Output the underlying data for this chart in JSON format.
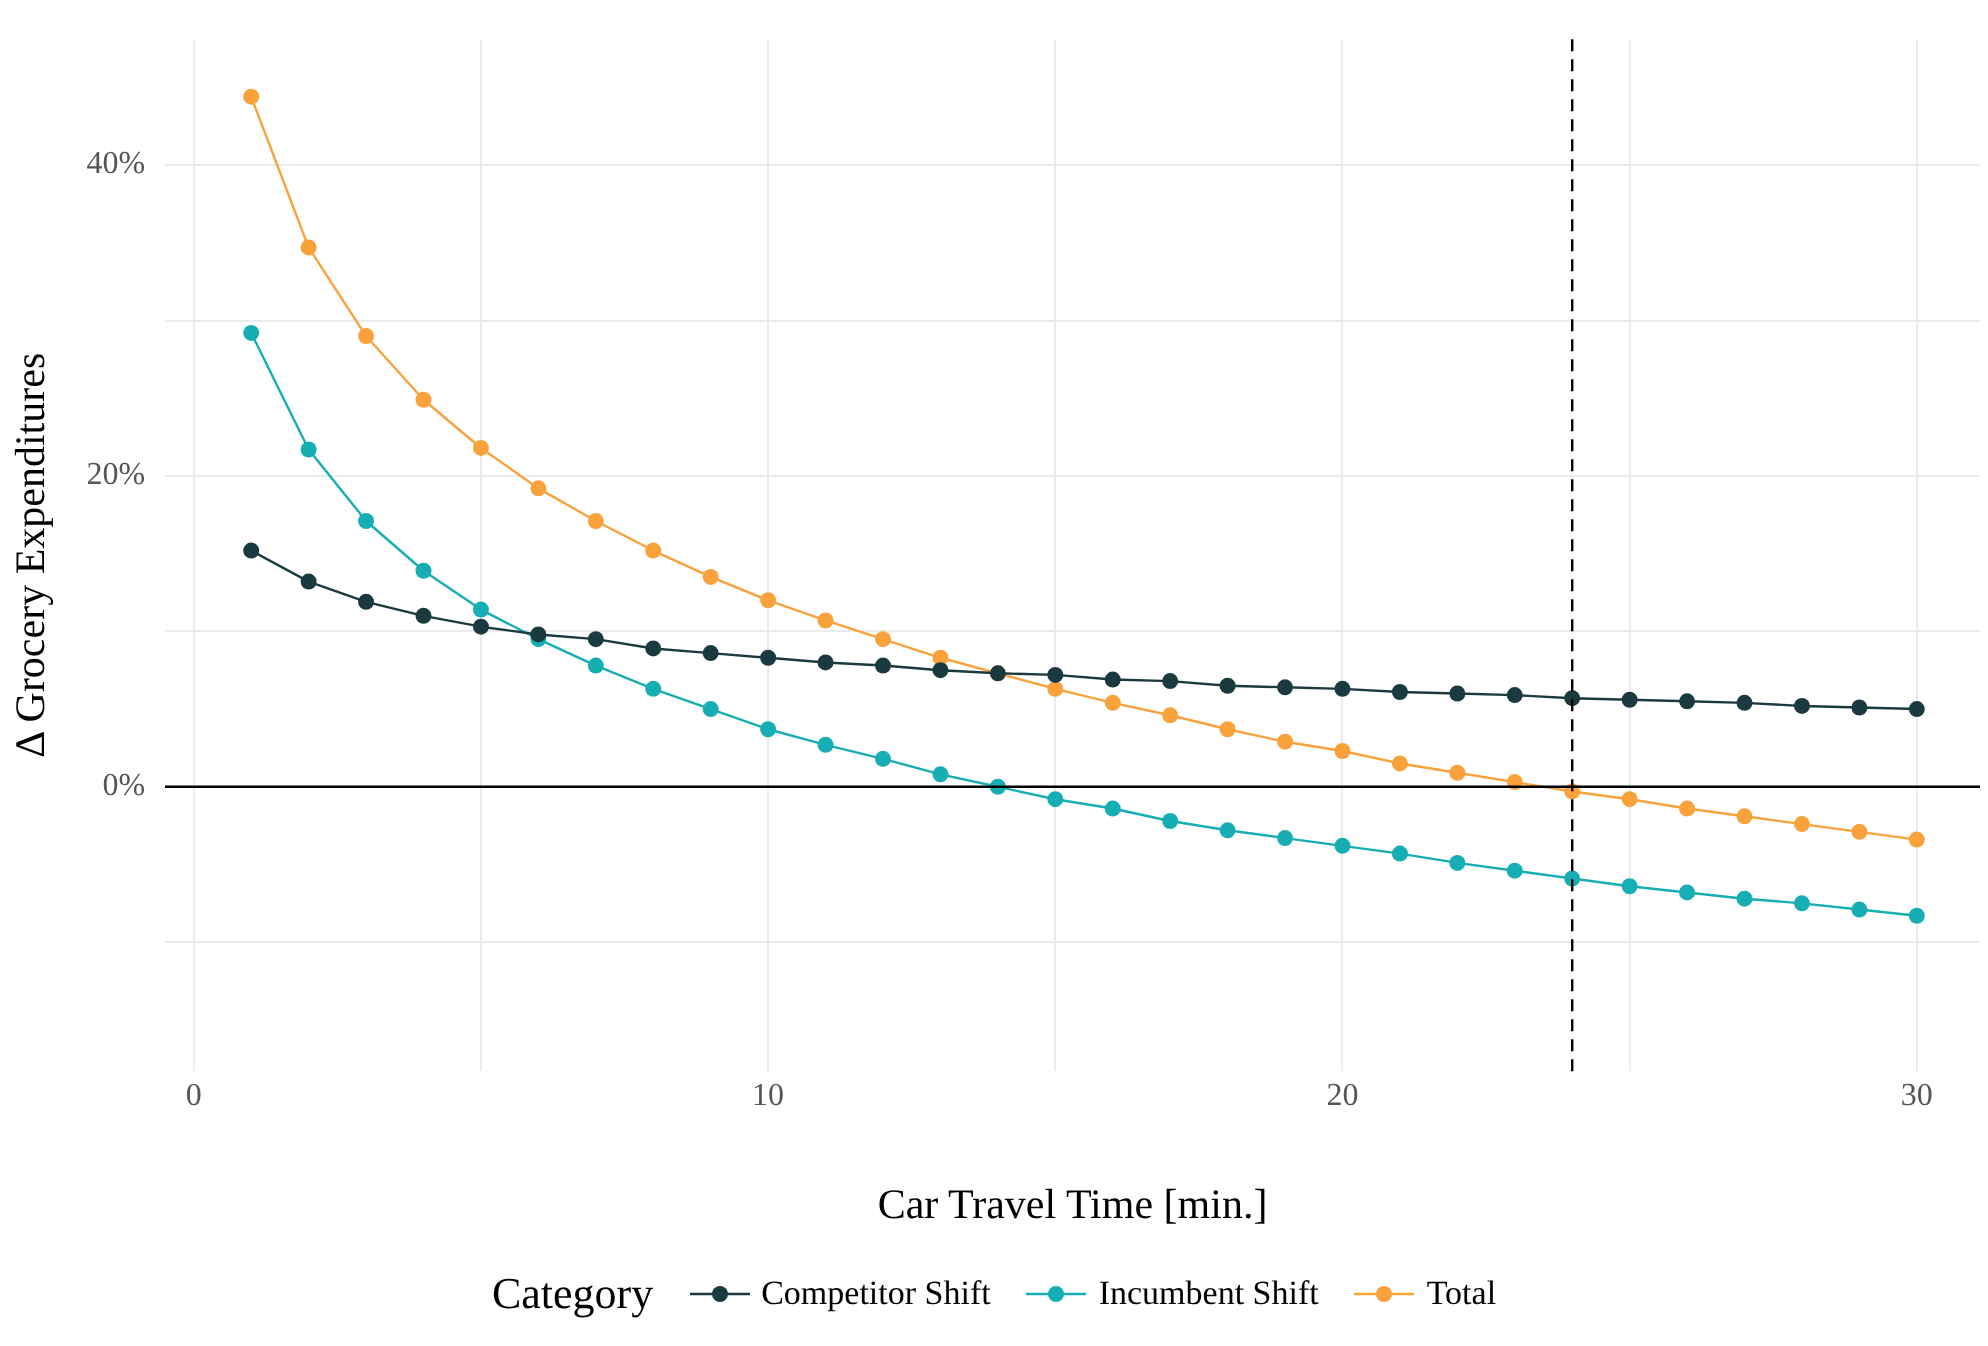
{
  "chart_data": {
    "type": "line",
    "xlabel": "Car Travel Time [min.]",
    "ylabel": "Δ Grocery Expenditures",
    "legend_title": "Category",
    "legend": "bottom",
    "grid": true,
    "marker": "circle",
    "line_style": "solid",
    "x": [
      1,
      2,
      3,
      4,
      5,
      6,
      7,
      8,
      9,
      10,
      11,
      12,
      13,
      14,
      15,
      16,
      17,
      18,
      19,
      20,
      21,
      22,
      23,
      24,
      25,
      26,
      27,
      28,
      29,
      30
    ],
    "xlim": [
      -0.5,
      31.1
    ],
    "xticks": [
      0,
      {
        "value": 5,
        "label": null
      },
      10,
      {
        "value": 15,
        "label": null
      },
      20,
      {
        "value": 25,
        "label": null
      },
      30
    ],
    "ylim": [
      -18.3,
      48.1
    ],
    "yticks": [
      {
        "value": -10,
        "label": null
      },
      {
        "value": 0,
        "label": "0%"
      },
      {
        "value": 10,
        "label": null
      },
      {
        "value": 20,
        "label": "20%"
      },
      {
        "value": 30,
        "label": null
      },
      {
        "value": 40,
        "label": "40%"
      }
    ],
    "series": [
      {
        "name": "Competitor Shift",
        "color": "#1b3a40",
        "values": [
          15.2,
          13.2,
          11.9,
          11.0,
          10.3,
          9.8,
          9.5,
          8.9,
          8.6,
          8.3,
          8.0,
          7.8,
          7.5,
          7.3,
          7.2,
          6.9,
          6.8,
          6.5,
          6.4,
          6.3,
          6.1,
          6.0,
          5.9,
          5.7,
          5.6,
          5.5,
          5.4,
          5.2,
          5.1,
          5.0
        ]
      },
      {
        "name": "Incumbent Shift",
        "color": "#17aeb3",
        "values": [
          29.2,
          21.7,
          17.1,
          13.9,
          11.4,
          9.5,
          7.8,
          6.3,
          5.0,
          3.7,
          2.7,
          1.8,
          0.8,
          0,
          -0.8,
          -1.4,
          -2.2,
          -2.8,
          -3.3,
          -3.8,
          -4.3,
          -4.9,
          -5.4,
          -5.9,
          -6.4,
          -6.8,
          -7.2,
          -7.5,
          -7.9,
          -8.3
        ]
      },
      {
        "name": "Total",
        "color": "#f9a23c",
        "values": [
          44.4,
          34.7,
          29.0,
          24.9,
          21.8,
          19.2,
          17.1,
          15.2,
          13.5,
          12.0,
          10.7,
          9.5,
          8.3,
          7.3,
          6.3,
          5.4,
          4.6,
          3.7,
          2.9,
          2.3,
          1.5,
          0.9,
          0.3,
          -0.3,
          -0.8,
          -1.4,
          -1.9,
          -2.4,
          -2.9,
          -3.4
        ]
      }
    ],
    "ref_lines": [
      {
        "axis": "y",
        "value": 0,
        "color": "#000000",
        "line_style": "solid"
      },
      {
        "axis": "x",
        "value": 24,
        "color": "#000000",
        "line_style": "dashed"
      }
    ]
  }
}
